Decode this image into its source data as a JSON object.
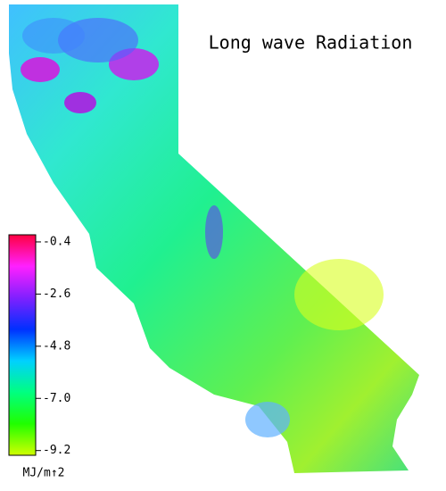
{
  "title": "Long wave Radiation",
  "colorbar": {
    "unit": "MJ/m↑2",
    "clim": [
      -9.4,
      -0.1
    ],
    "ticks": [
      -0.4,
      -2.6,
      -4.8,
      {
        "value": -7,
        "label": "-7.0"
      },
      -9.2
    ],
    "colors": [
      "#ff0040",
      "#ff20ff",
      "#8020ff",
      "#0030ff",
      "#00d0ff",
      "#00ff80",
      "#20ff00",
      "#d0ff00"
    ]
  }
}
